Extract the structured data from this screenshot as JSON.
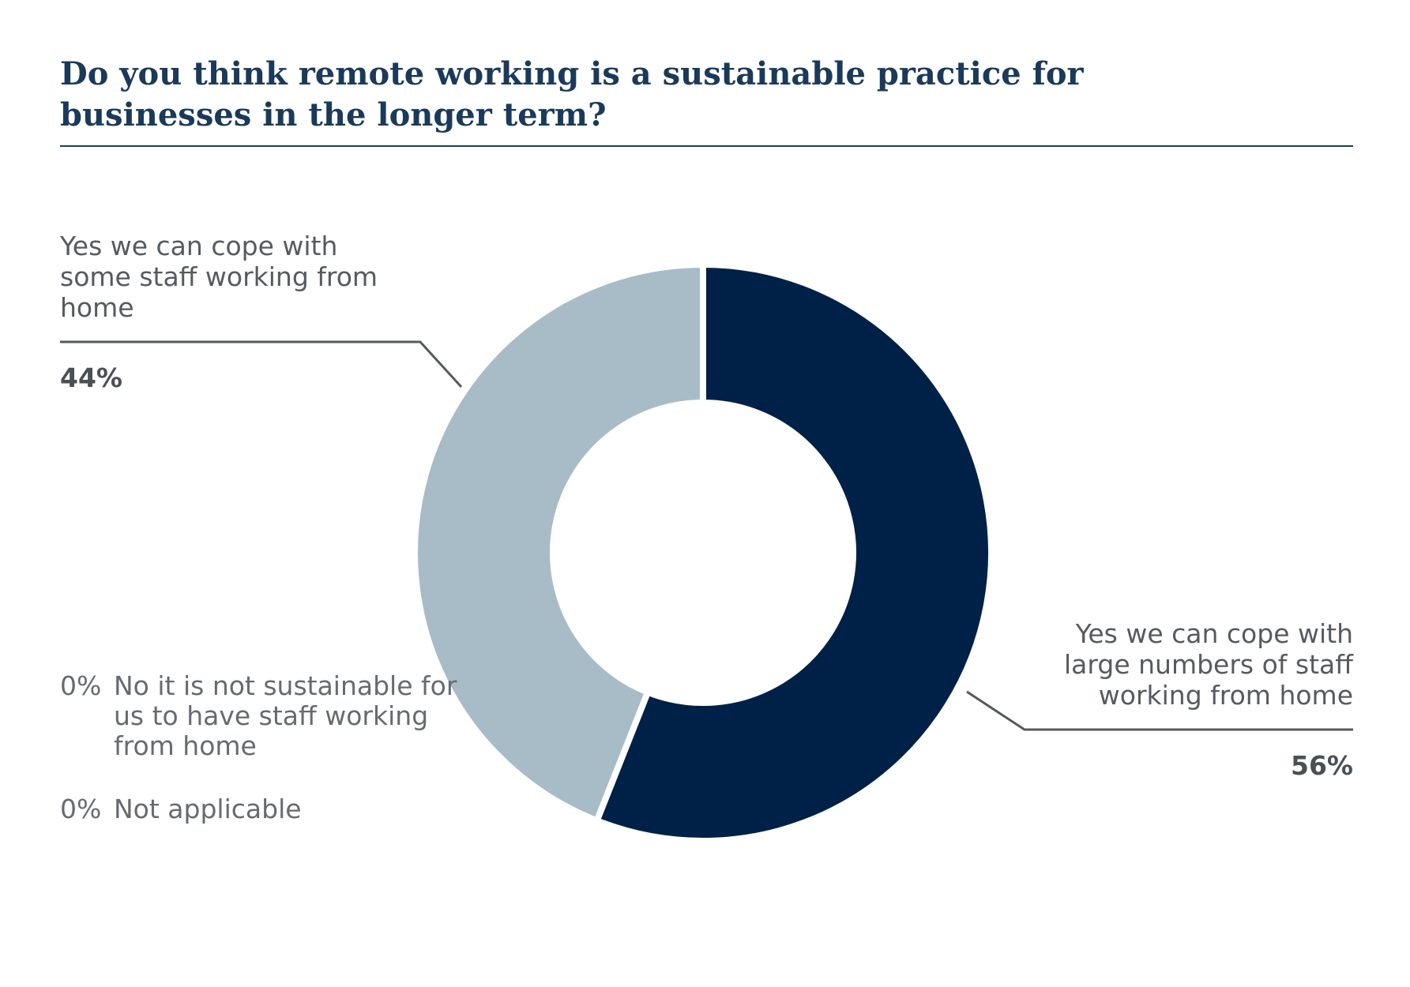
{
  "chart_data": {
    "type": "pie",
    "title": "Do you think remote working is a sustainable practice for businesses in the longer term?",
    "slices": [
      {
        "label": "Yes we can cope with large numbers of staff working from home",
        "value": 56,
        "value_label": "56%",
        "color": "#002147"
      },
      {
        "label": "Yes we can cope with some staff working from home",
        "value": 44,
        "value_label": "44%",
        "color": "#a8bcc7"
      }
    ],
    "zero_items": [
      {
        "value_label": "0%",
        "label": "No it is not sustainable for us to have staff working from home"
      },
      {
        "value_label": "0%",
        "label": "Not applicable"
      }
    ],
    "donut": true
  }
}
